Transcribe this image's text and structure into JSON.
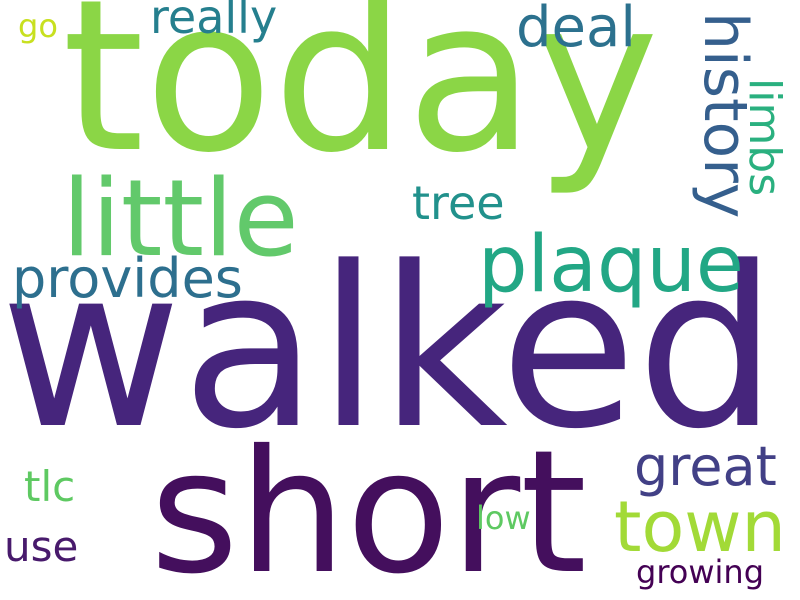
{
  "words": [
    {
      "text": "today",
      "color": "#8bd646"
    },
    {
      "text": "walked",
      "color": "#46257c"
    },
    {
      "text": "short",
      "color": "#440f5d"
    },
    {
      "text": "little",
      "color": "#62c96b"
    },
    {
      "text": "plaque",
      "color": "#22a785"
    },
    {
      "text": "town",
      "color": "#a2da37"
    },
    {
      "text": "history",
      "color": "#355f8d"
    },
    {
      "text": "provides",
      "color": "#2d6f8e"
    },
    {
      "text": "really",
      "color": "#257f8e"
    },
    {
      "text": "deal",
      "color": "#2c718e"
    },
    {
      "text": "great",
      "color": "#424086"
    },
    {
      "text": "limbs",
      "color": "#2ab07f"
    },
    {
      "text": "tree",
      "color": "#21918c"
    },
    {
      "text": "tlc",
      "color": "#5ec962"
    },
    {
      "text": "use",
      "color": "#481a6c"
    },
    {
      "text": "low",
      "color": "#5ec962"
    },
    {
      "text": "growing",
      "color": "#440154"
    },
    {
      "text": "go",
      "color": "#c8e020"
    }
  ]
}
